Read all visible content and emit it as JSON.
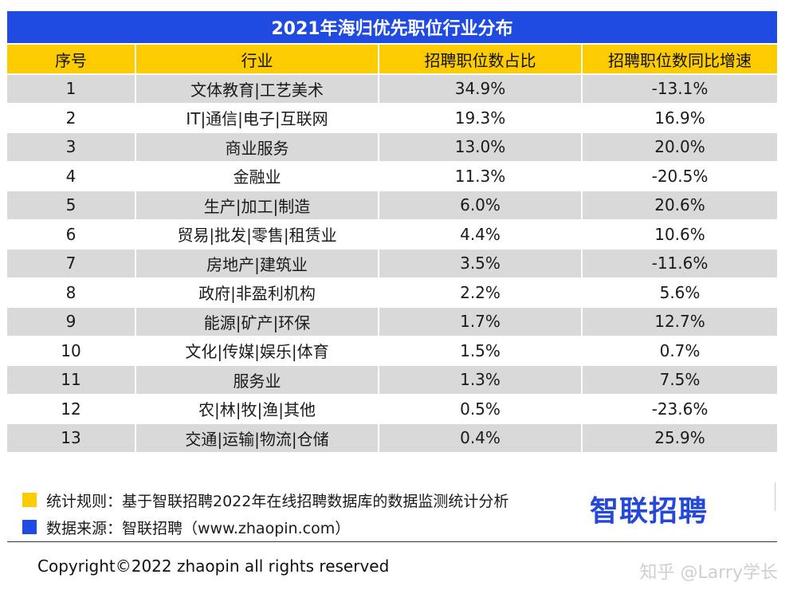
{
  "title": "2021年海归优先职位行业分布",
  "headers": [
    "序号",
    "行业",
    "招聘职位数占比",
    "招聘职位数同比增速"
  ],
  "rows": [
    [
      "1",
      "文体教育|工艺美术",
      "34.9%",
      "-13.1%"
    ],
    [
      "2",
      "IT|通信|电子|互联网",
      "19.3%",
      "16.9%"
    ],
    [
      "3",
      "商业服务",
      "13.0%",
      "20.0%"
    ],
    [
      "4",
      "金融业",
      "11.3%",
      "-20.5%"
    ],
    [
      "5",
      "生产|加工|制造",
      "6.0%",
      "20.6%"
    ],
    [
      "6",
      "贸易|批发|零售|租赁业",
      "4.4%",
      "10.6%"
    ],
    [
      "7",
      "房地产|建筑业",
      "3.5%",
      "-11.6%"
    ],
    [
      "8",
      "政府|非盈利机构",
      "2.2%",
      "5.6%"
    ],
    [
      "9",
      "能源|矿产|环保",
      "1.7%",
      "12.7%"
    ],
    [
      "10",
      "文化|传媒|娱乐|体育",
      "1.5%",
      "0.7%"
    ],
    [
      "11",
      "服务业",
      "1.3%",
      "7.5%"
    ],
    [
      "12",
      "农|林|牧|渔|其他",
      "0.5%",
      "-23.6%"
    ],
    [
      "13",
      "交通|运输|物流|仓储",
      "0.4%",
      "25.9%"
    ]
  ],
  "legend": [
    {
      "text": "统计规则：基于智联招聘2022年在线招聘数据库的数据监测统计分析",
      "color": "#fccb00"
    },
    {
      "text": "数据来源：智联招聘（www.zhaopin.com）",
      "color": "#1f4be0"
    }
  ],
  "brand": "智联招聘",
  "copyright": "Copyright©2022 zhaopin all rights reserved",
  "watermark": "知乎 @Larry学长",
  "colors": {
    "title_bg": "#1f4be0",
    "header_bg": "#fccb00",
    "stripe": "#d9d9d9",
    "brand": "#2449d9"
  }
}
